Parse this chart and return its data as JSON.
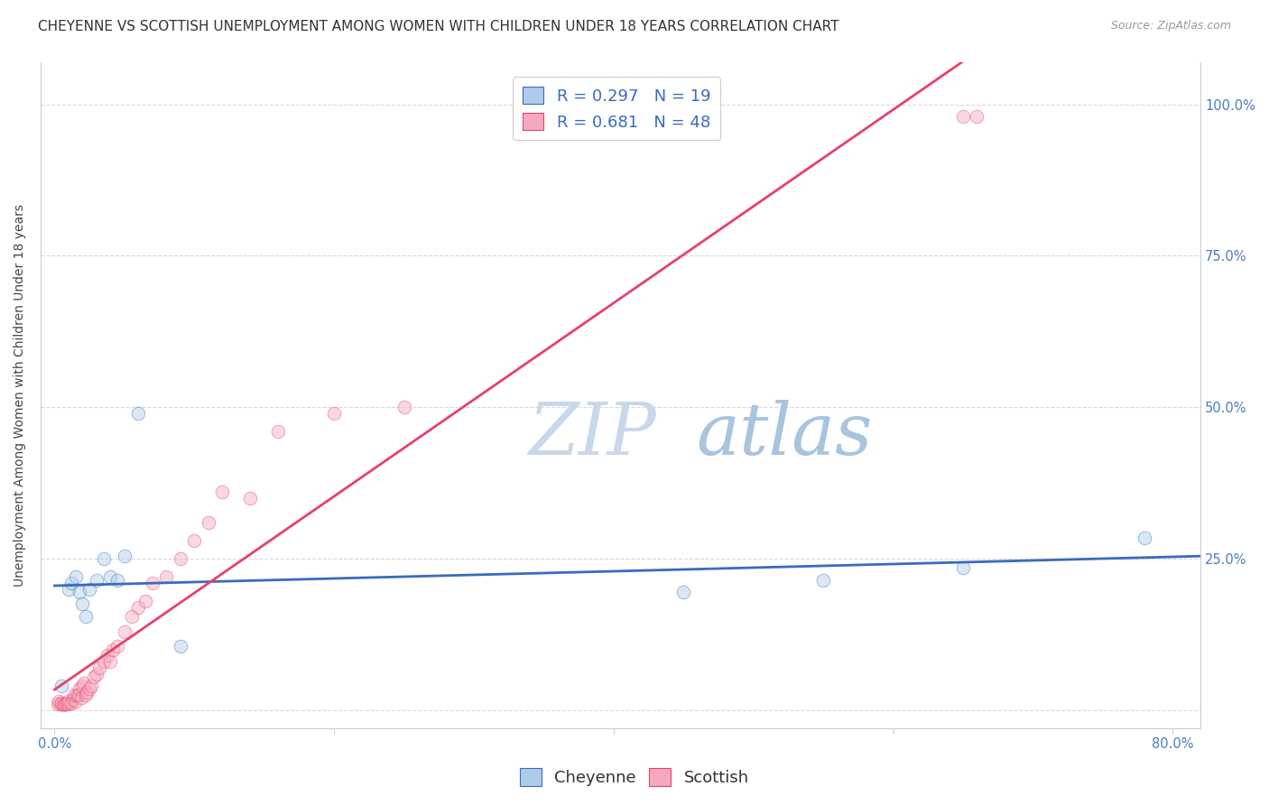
{
  "title": "CHEYENNE VS SCOTTISH UNEMPLOYMENT AMONG WOMEN WITH CHILDREN UNDER 18 YEARS CORRELATION CHART",
  "source": "Source: ZipAtlas.com",
  "ylabel": "Unemployment Among Women with Children Under 18 years",
  "cheyenne_R": 0.297,
  "cheyenne_N": 19,
  "scottish_R": 0.681,
  "scottish_N": 48,
  "x_ticks": [
    0.0,
    0.2,
    0.4,
    0.6,
    0.8
  ],
  "y_ticks": [
    0.0,
    0.25,
    0.5,
    0.75,
    1.0
  ],
  "right_y_tick_labels": [
    "",
    "25.0%",
    "50.0%",
    "75.0%",
    "100.0%"
  ],
  "cheyenne_color": "#aecce8",
  "scottish_color": "#f4aabe",
  "cheyenne_line_color": "#3a6abf",
  "scottish_line_color": "#e8406a",
  "watermark_color": "#ccdcef",
  "cheyenne_x": [
    0.005,
    0.01,
    0.012,
    0.015,
    0.018,
    0.02,
    0.022,
    0.025,
    0.03,
    0.035,
    0.04,
    0.045,
    0.05,
    0.06,
    0.09,
    0.45,
    0.55,
    0.65,
    0.78
  ],
  "cheyenne_y": [
    0.04,
    0.2,
    0.21,
    0.22,
    0.195,
    0.175,
    0.155,
    0.2,
    0.215,
    0.25,
    0.22,
    0.215,
    0.255,
    0.49,
    0.105,
    0.195,
    0.215,
    0.235,
    0.285
  ],
  "scottish_x": [
    0.002,
    0.003,
    0.004,
    0.005,
    0.006,
    0.007,
    0.008,
    0.009,
    0.01,
    0.01,
    0.012,
    0.013,
    0.014,
    0.015,
    0.016,
    0.017,
    0.018,
    0.019,
    0.02,
    0.021,
    0.022,
    0.023,
    0.025,
    0.026,
    0.028,
    0.03,
    0.032,
    0.035,
    0.038,
    0.04,
    0.042,
    0.045,
    0.05,
    0.055,
    0.06,
    0.065,
    0.07,
    0.08,
    0.09,
    0.1,
    0.11,
    0.12,
    0.14,
    0.16,
    0.2,
    0.25,
    0.65,
    0.66
  ],
  "scottish_y": [
    0.01,
    0.015,
    0.01,
    0.012,
    0.008,
    0.01,
    0.01,
    0.012,
    0.01,
    0.015,
    0.012,
    0.018,
    0.025,
    0.015,
    0.025,
    0.025,
    0.035,
    0.02,
    0.04,
    0.045,
    0.025,
    0.03,
    0.035,
    0.04,
    0.055,
    0.06,
    0.07,
    0.08,
    0.09,
    0.08,
    0.1,
    0.105,
    0.13,
    0.155,
    0.17,
    0.18,
    0.21,
    0.22,
    0.25,
    0.28,
    0.31,
    0.36,
    0.35,
    0.46,
    0.49,
    0.5,
    0.98,
    0.98
  ],
  "marker_size": 110,
  "marker_alpha": 0.45,
  "grid_color": "#d8d8e4",
  "title_fontsize": 11,
  "label_fontsize": 10,
  "tick_fontsize": 10.5,
  "legend_fontsize": 13
}
